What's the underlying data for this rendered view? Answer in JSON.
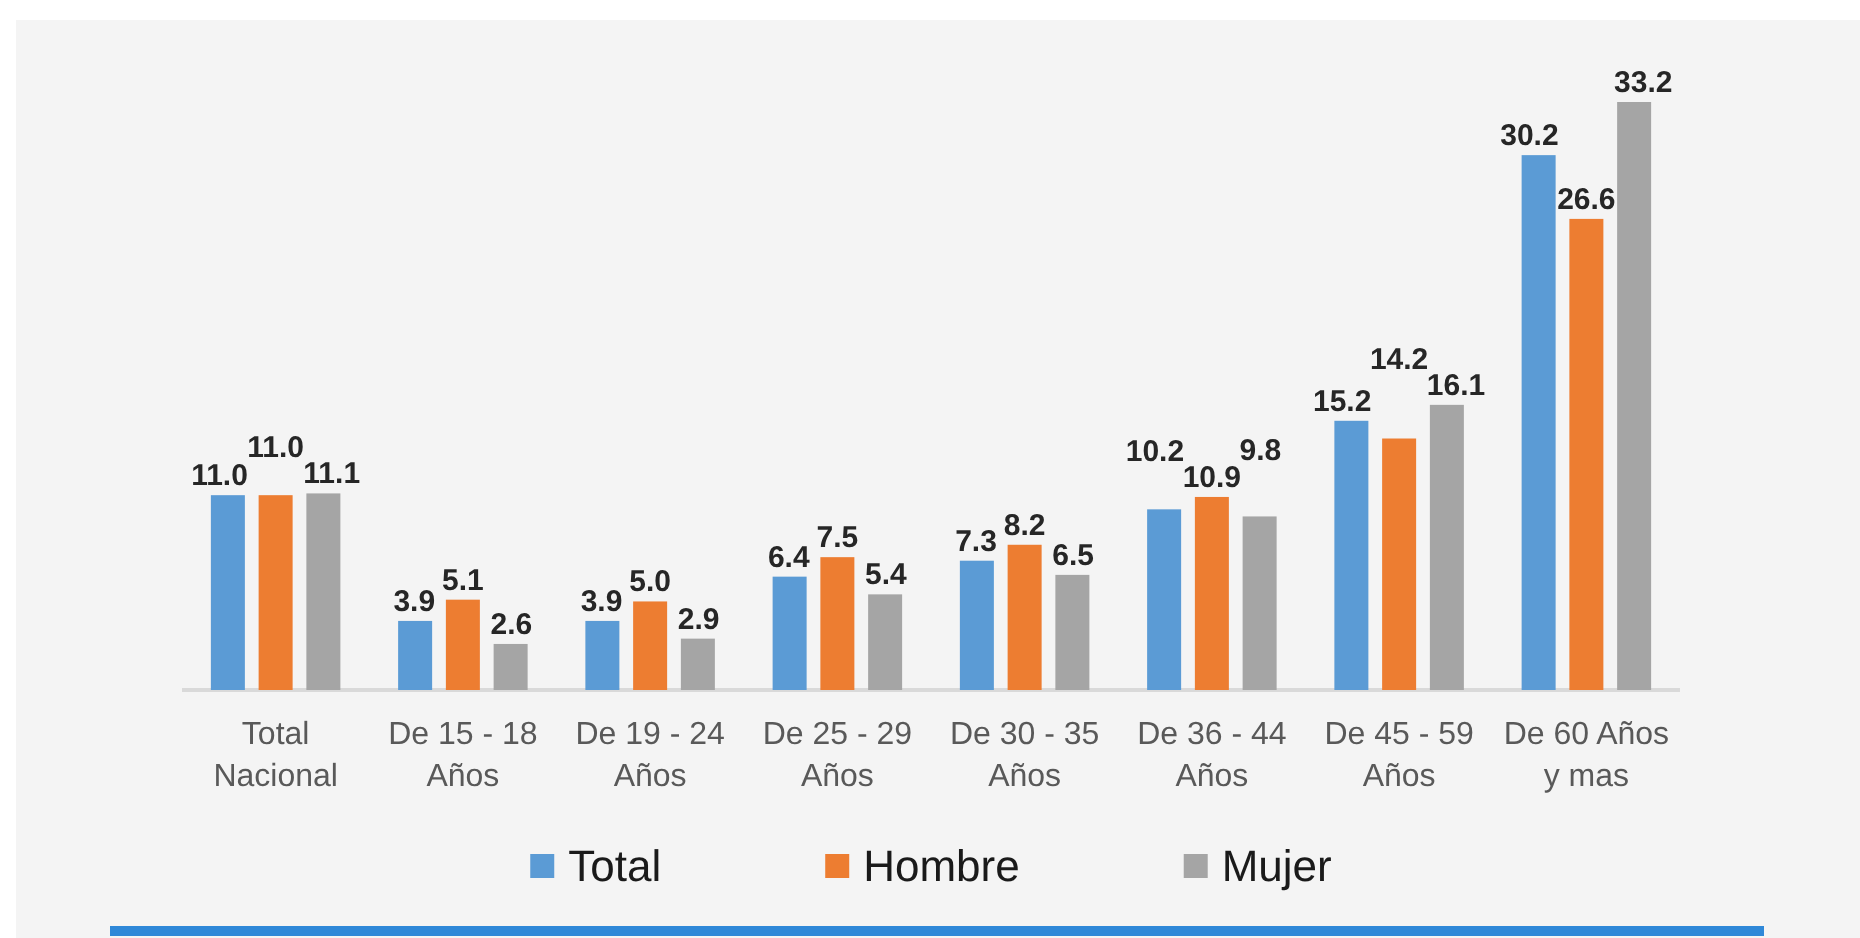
{
  "chart_data": {
    "type": "bar",
    "categories": [
      "Total Nacional",
      "De 15 - 18 Años",
      "De 19 - 24 Años",
      "De 25 - 29 Años",
      "De 30 - 35 Años",
      "De 36 - 44 Años",
      "De 45 - 59 Años",
      "De 60 Años y mas"
    ],
    "series": [
      {
        "name": "Total",
        "color": "#5b9bd5",
        "values": [
          11.0,
          3.9,
          3.9,
          6.4,
          7.3,
          10.2,
          15.2,
          30.2
        ],
        "value_labels": [
          "11.0",
          "3.9",
          "3.9",
          "6.4",
          "7.3",
          "10.2",
          "15.2",
          "30.2"
        ]
      },
      {
        "name": "Hombre",
        "color": "#ed7d31",
        "values": [
          11.0,
          5.1,
          5.0,
          7.5,
          8.2,
          10.9,
          14.2,
          26.6
        ],
        "value_labels": [
          "11.0",
          "5.1",
          "5.0",
          "7.5",
          "8.2",
          "10.9",
          "14.2",
          "26.6"
        ]
      },
      {
        "name": "Mujer",
        "color": "#a5a5a5",
        "values": [
          11.1,
          2.6,
          2.9,
          5.4,
          6.5,
          9.8,
          16.1,
          33.2
        ],
        "value_labels": [
          "11.1",
          "2.6",
          "2.9",
          "5.4",
          "6.5",
          "9.8",
          "16.1",
          "33.2"
        ]
      }
    ],
    "legend": "bottom",
    "tick_labels": "x"
  }
}
